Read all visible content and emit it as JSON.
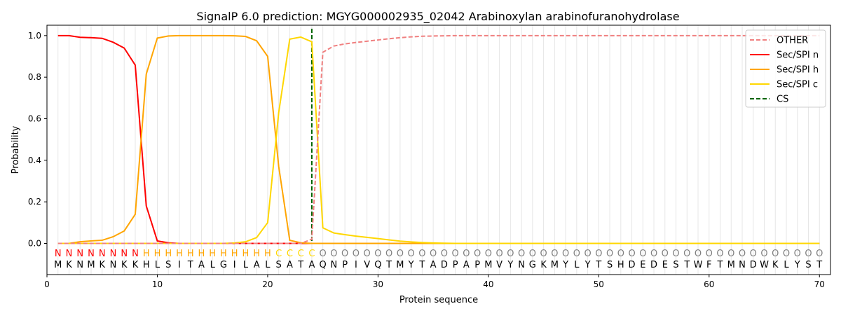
{
  "chart_data": {
    "type": "line",
    "title": "SignalP 6.0 prediction: MGYG000002935_02042 Arabinoxylan arabinofuranohydrolase",
    "xlabel": "Protein sequence",
    "ylabel": "Probability",
    "xlim": [
      0,
      71
    ],
    "ylim": [
      -0.15,
      1.05
    ],
    "xticks": [
      0,
      10,
      20,
      30,
      40,
      50,
      60,
      70
    ],
    "yticks": [
      0.0,
      0.2,
      0.4,
      0.6,
      0.8,
      1.0
    ],
    "sequence": [
      "M",
      "K",
      "N",
      "M",
      "K",
      "N",
      "K",
      "K",
      "H",
      "L",
      "S",
      "I",
      "T",
      "A",
      "L",
      "G",
      "I",
      "L",
      "A",
      "L",
      "S",
      "A",
      "T",
      "A",
      "Q",
      "N",
      "P",
      "I",
      "V",
      "Q",
      "T",
      "M",
      "Y",
      "T",
      "A",
      "D",
      "P",
      "A",
      "P",
      "M",
      "V",
      "Y",
      "N",
      "G",
      "K",
      "M",
      "Y",
      "L",
      "Y",
      "T",
      "S",
      "H",
      "D",
      "E",
      "D",
      "E",
      "S",
      "T",
      "W",
      "F",
      "T",
      "M",
      "N",
      "D",
      "W",
      "K",
      "L",
      "Y",
      "S",
      "T"
    ],
    "labels": [
      "N",
      "N",
      "N",
      "N",
      "N",
      "N",
      "N",
      "N",
      "H",
      "H",
      "H",
      "H",
      "H",
      "H",
      "H",
      "H",
      "H",
      "H",
      "H",
      "H",
      "C",
      "C",
      "C",
      "C",
      "O",
      "O",
      "O",
      "O",
      "O",
      "O",
      "O",
      "O",
      "O",
      "O",
      "O",
      "O",
      "O",
      "O",
      "O",
      "O",
      "O",
      "O",
      "O",
      "O",
      "O",
      "O",
      "O",
      "O",
      "O",
      "O",
      "O",
      "O",
      "O",
      "O",
      "O",
      "O",
      "O",
      "O",
      "O",
      "O",
      "O",
      "O",
      "O",
      "O",
      "O",
      "O",
      "O",
      "O",
      "O",
      "O"
    ],
    "label_colors": {
      "N": "#ff0000",
      "H": "#ffa500",
      "C": "#ffd700",
      "O": "#808080"
    },
    "cleavage_site": 24,
    "legend_position": "top-right",
    "series": [
      {
        "name": "OTHER",
        "color": "#f08080",
        "style": "dashed",
        "values": [
          0,
          0,
          0,
          0,
          0,
          0,
          0,
          0,
          0,
          0,
          0,
          0,
          0,
          0,
          0,
          0,
          0,
          0,
          0,
          0,
          0,
          0,
          0,
          0.02,
          0.92,
          0.95,
          0.96,
          0.967,
          0.973,
          0.979,
          0.985,
          0.99,
          0.994,
          0.997,
          0.998,
          0.999,
          1,
          1,
          1,
          1,
          1,
          1,
          1,
          1,
          1,
          1,
          1,
          1,
          1,
          1,
          1,
          1,
          1,
          1,
          1,
          1,
          1,
          1,
          1,
          1,
          1,
          1,
          1,
          1,
          1,
          1,
          1,
          1,
          1,
          1
        ]
      },
      {
        "name": "Sec/SPI n",
        "color": "#ff0000",
        "style": "solid",
        "values": [
          1.0,
          1.0,
          0.992,
          0.99,
          0.987,
          0.968,
          0.94,
          0.858,
          0.18,
          0.012,
          0.003,
          0,
          0,
          0,
          0,
          0,
          0,
          0,
          0,
          0,
          0,
          0,
          0,
          0,
          0,
          0,
          0,
          0,
          0,
          0,
          0,
          0,
          0,
          0,
          0,
          0,
          0,
          0,
          0,
          0,
          0,
          0,
          0,
          0,
          0,
          0,
          0,
          0,
          0,
          0,
          0,
          0,
          0,
          0,
          0,
          0,
          0,
          0,
          0,
          0,
          0,
          0,
          0,
          0,
          0,
          0,
          0,
          0,
          0,
          0
        ]
      },
      {
        "name": "Sec/SPI h",
        "color": "#ffa500",
        "style": "solid",
        "values": [
          0,
          0,
          0.008,
          0.012,
          0.015,
          0.032,
          0.06,
          0.14,
          0.815,
          0.988,
          0.998,
          1.0,
          1.0,
          1.0,
          1.0,
          1.0,
          0.999,
          0.996,
          0.975,
          0.9,
          0.37,
          0.015,
          0.003,
          0,
          0,
          0,
          0,
          0,
          0,
          0,
          0,
          0,
          0,
          0,
          0,
          0,
          0,
          0,
          0,
          0,
          0,
          0,
          0,
          0,
          0,
          0,
          0,
          0,
          0,
          0,
          0,
          0,
          0,
          0,
          0,
          0,
          0,
          0,
          0,
          0,
          0,
          0,
          0,
          0,
          0,
          0,
          0,
          0,
          0,
          0
        ]
      },
      {
        "name": "Sec/SPI c",
        "color": "#ffd700",
        "style": "solid",
        "values": [
          0,
          0,
          0,
          0,
          0,
          0,
          0,
          0,
          0,
          0,
          0,
          0,
          0,
          0,
          0,
          0,
          0.002,
          0.008,
          0.028,
          0.1,
          0.63,
          0.983,
          0.993,
          0.97,
          0.075,
          0.05,
          0.042,
          0.035,
          0.029,
          0.023,
          0.017,
          0.011,
          0.007,
          0.004,
          0.002,
          0.001,
          0,
          0,
          0,
          0,
          0,
          0,
          0,
          0,
          0,
          0,
          0,
          0,
          0,
          0,
          0,
          0,
          0,
          0,
          0,
          0,
          0,
          0,
          0,
          0,
          0,
          0,
          0,
          0,
          0,
          0,
          0,
          0,
          0,
          0
        ]
      },
      {
        "name": "CS",
        "color": "#006400",
        "style": "dashed-vertical"
      }
    ]
  }
}
